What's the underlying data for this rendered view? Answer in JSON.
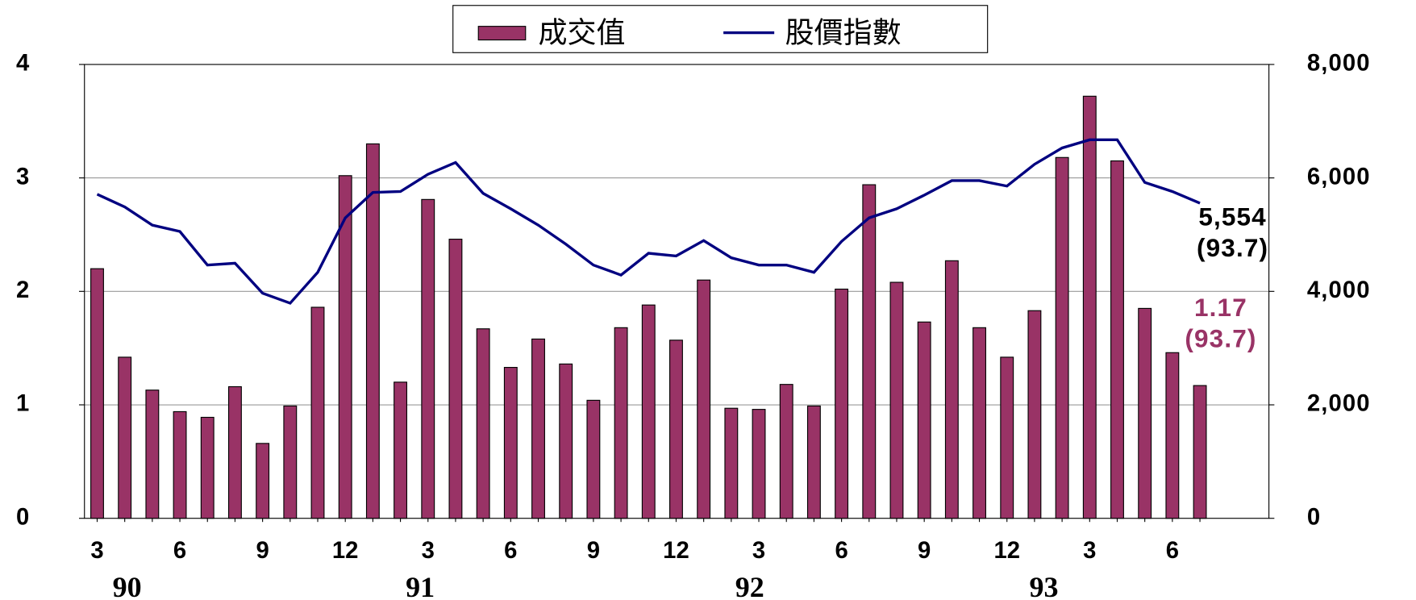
{
  "chart_data": {
    "type": "bar+line",
    "categories": [
      "3",
      null,
      null,
      "6",
      null,
      null,
      "9",
      null,
      null,
      "12",
      null,
      null,
      "3",
      null,
      null,
      "6",
      null,
      null,
      "9",
      null,
      null,
      "12",
      null,
      null,
      "3",
      null,
      null,
      "6",
      null,
      null,
      "9",
      null,
      null,
      "12",
      null,
      null,
      "3",
      null,
      null,
      "6",
      null
    ],
    "year_labels": [
      "90",
      "91",
      "92",
      "93"
    ],
    "series": [
      {
        "name": "成交值",
        "type": "bar",
        "color": "#993366",
        "values": [
          2.2,
          1.42,
          1.13,
          0.94,
          0.89,
          1.16,
          0.66,
          0.99,
          1.86,
          3.02,
          3.3,
          1.2,
          2.81,
          2.46,
          1.67,
          1.33,
          1.58,
          1.36,
          1.04,
          1.68,
          1.88,
          1.57,
          2.1,
          0.97,
          0.96,
          1.18,
          0.99,
          2.02,
          2.94,
          2.08,
          1.73,
          2.27,
          1.68,
          1.42,
          1.83,
          3.18,
          3.72,
          3.15,
          1.85,
          1.46,
          1.17
        ]
      },
      {
        "name": "股價指數",
        "type": "line",
        "axis": "y2",
        "color": "#000080",
        "values": [
          5712,
          5488,
          5168,
          5056,
          4464,
          4496,
          3968,
          3792,
          4336,
          5296,
          5744,
          5760,
          6064,
          6272,
          5728,
          5456,
          5168,
          4832,
          4464,
          4288,
          4672,
          4624,
          4896,
          4592,
          4464,
          4464,
          4336,
          4880,
          5296,
          5456,
          5696,
          5952,
          5952,
          5856,
          6240,
          6528,
          6672,
          6672,
          5920,
          5760,
          5554
        ]
      }
    ],
    "annotations": [
      {
        "text": "5,554",
        "color": "#000000"
      },
      {
        "text": "(93.7)",
        "color": "#000000"
      },
      {
        "text": "1.17",
        "color": "#993366"
      },
      {
        "text": "(93.7)",
        "color": "#993366"
      }
    ],
    "ylim": [
      0,
      4
    ],
    "yticks": [
      0,
      1,
      2,
      3,
      4
    ],
    "y2lim": [
      0,
      8000
    ],
    "y2ticks": [
      0,
      {
        "value": 2000,
        "label": "2,000"
      },
      {
        "value": 4000,
        "label": "4,000"
      },
      {
        "value": 6000,
        "label": "6,000"
      },
      {
        "value": 8000,
        "label": "8,000"
      }
    ],
    "grid": true,
    "legend": "top"
  }
}
